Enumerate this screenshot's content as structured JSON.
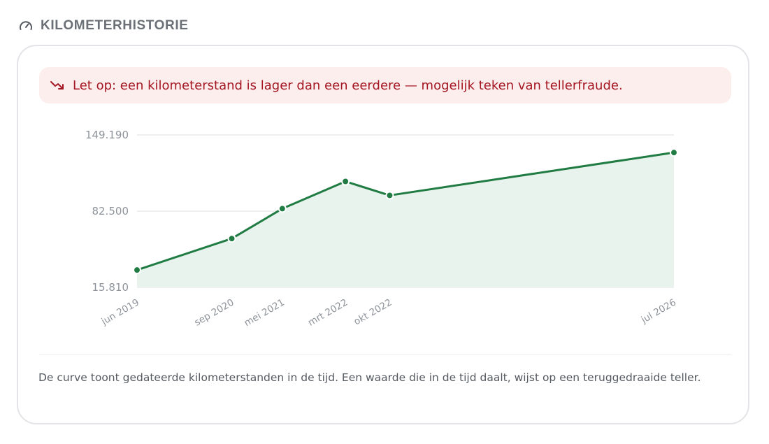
{
  "section": {
    "title": "KILOMETERHISTORIE",
    "icon": "gauge-icon"
  },
  "alert": {
    "icon": "trend-down-icon",
    "text": "Let op: een kilometerstand is lager dan een eerdere — mogelijk teken van tellerfraude."
  },
  "chart_data": {
    "type": "area",
    "x": [
      "jun 2019",
      "sep 2020",
      "mei 2021",
      "mrt 2022",
      "okt 2022",
      "jul 2026"
    ],
    "x_dates": [
      "2019-06",
      "2020-09",
      "2021-05",
      "2022-03",
      "2022-10",
      "2026-07"
    ],
    "values": [
      31000,
      58500,
      84700,
      108500,
      96300,
      133800
    ],
    "yticks": [
      "149.190",
      "82.500",
      "15.810"
    ],
    "ylim": [
      15810,
      149190
    ],
    "grid": true,
    "line_color": "#217c44",
    "fill_color": "#e7f3ec"
  },
  "caption": "De curve toont gedateerde kilometerstanden in de tijd. Een waarde die in de tijd daalt, wijst op een teruggedraaide teller."
}
